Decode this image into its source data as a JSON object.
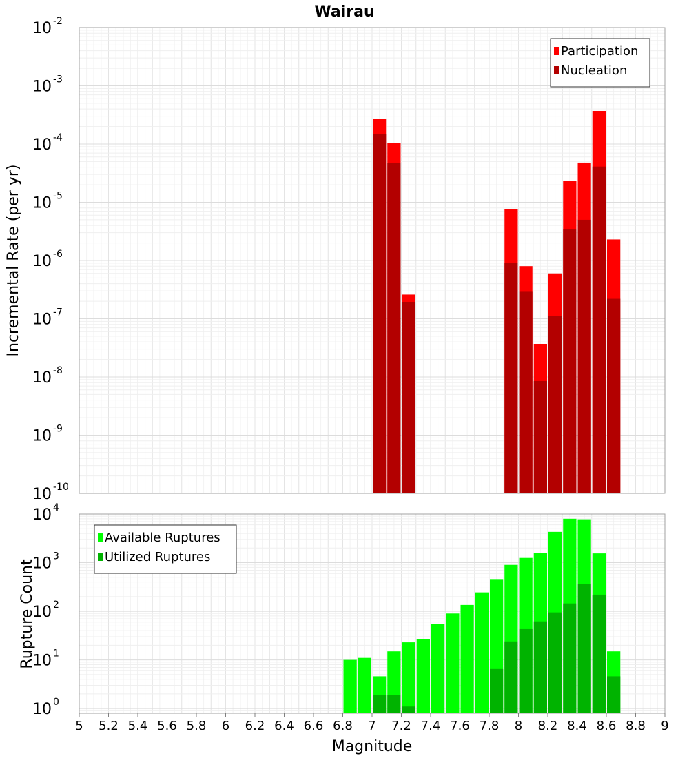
{
  "chart_data": [
    {
      "type": "bar",
      "title": "Wairau",
      "xlabel": "",
      "ylabel": "Incremental Rate (per yr)",
      "yscale": "log",
      "ylim": [
        1e-10,
        0.01
      ],
      "xlim": [
        5,
        9
      ],
      "bar_width": 0.1,
      "grid": true,
      "legend_position": "top-right",
      "yticks": [
        {
          "base": "10",
          "exp": "-2"
        },
        {
          "base": "10",
          "exp": "-3"
        },
        {
          "base": "10",
          "exp": "-4"
        },
        {
          "base": "10",
          "exp": "-5"
        },
        {
          "base": "10",
          "exp": "-6"
        },
        {
          "base": "10",
          "exp": "-7"
        },
        {
          "base": "10",
          "exp": "-8"
        },
        {
          "base": "10",
          "exp": "-9"
        },
        {
          "base": "10",
          "exp": "-10"
        }
      ],
      "series": [
        {
          "name": "Participation",
          "color": "#ff0000",
          "points": [
            {
              "x": 7.05,
              "y": 0.00027
            },
            {
              "x": 7.15,
              "y": 0.000105
            },
            {
              "x": 7.25,
              "y": 2.6e-07
            },
            {
              "x": 7.95,
              "y": 7.7e-06
            },
            {
              "x": 8.05,
              "y": 8e-07
            },
            {
              "x": 8.15,
              "y": 3.7e-08
            },
            {
              "x": 8.25,
              "y": 6e-07
            },
            {
              "x": 8.35,
              "y": 2.3e-05
            },
            {
              "x": 8.45,
              "y": 4.8e-05
            },
            {
              "x": 8.55,
              "y": 0.00037
            },
            {
              "x": 8.65,
              "y": 2.3e-06
            }
          ]
        },
        {
          "name": "Nucleation",
          "color": "#b30000",
          "points": [
            {
              "x": 7.05,
              "y": 0.00015
            },
            {
              "x": 7.15,
              "y": 4.7e-05
            },
            {
              "x": 7.25,
              "y": 1.95e-07
            },
            {
              "x": 7.95,
              "y": 9e-07
            },
            {
              "x": 8.05,
              "y": 2.9e-07
            },
            {
              "x": 8.15,
              "y": 8.5e-09
            },
            {
              "x": 8.25,
              "y": 1.1e-07
            },
            {
              "x": 8.35,
              "y": 3.4e-06
            },
            {
              "x": 8.45,
              "y": 5e-06
            },
            {
              "x": 8.55,
              "y": 4.1e-05
            },
            {
              "x": 8.65,
              "y": 2.2e-07
            }
          ]
        }
      ]
    },
    {
      "type": "bar",
      "title": "",
      "xlabel": "Magnitude",
      "ylabel": "Rupture Count",
      "yscale": "log",
      "ylim": [
        0.8,
        10000
      ],
      "xlim": [
        5,
        9
      ],
      "bar_width": 0.1,
      "grid": true,
      "legend_position": "top-left",
      "yticks": [
        {
          "base": "10",
          "exp": "4",
          "value": 10000
        },
        {
          "base": "10",
          "exp": "3",
          "value": 1000
        },
        {
          "base": "10",
          "exp": "2",
          "value": 100
        },
        {
          "base": "10",
          "exp": "1",
          "value": 10
        },
        {
          "base": "10",
          "exp": "0",
          "value": 1
        }
      ],
      "xticks": [
        "5",
        "5.2",
        "5.4",
        "5.6",
        "5.8",
        "6",
        "6.2",
        "6.4",
        "6.6",
        "6.8",
        "7",
        "7.2",
        "7.4",
        "7.6",
        "7.8",
        "8",
        "8.2",
        "8.4",
        "8.6",
        "8.8",
        "9"
      ],
      "series": [
        {
          "name": "Available Ruptures",
          "color": "#00ff00",
          "points": [
            {
              "x": 6.85,
              "y": 10
            },
            {
              "x": 6.95,
              "y": 11
            },
            {
              "x": 7.05,
              "y": 4.6
            },
            {
              "x": 7.15,
              "y": 15
            },
            {
              "x": 7.25,
              "y": 23
            },
            {
              "x": 7.35,
              "y": 27
            },
            {
              "x": 7.45,
              "y": 55
            },
            {
              "x": 7.55,
              "y": 90
            },
            {
              "x": 7.65,
              "y": 135
            },
            {
              "x": 7.75,
              "y": 245
            },
            {
              "x": 7.85,
              "y": 460
            },
            {
              "x": 7.95,
              "y": 900
            },
            {
              "x": 8.05,
              "y": 1250
            },
            {
              "x": 8.15,
              "y": 1600
            },
            {
              "x": 8.25,
              "y": 4300
            },
            {
              "x": 8.35,
              "y": 8000
            },
            {
              "x": 8.45,
              "y": 7800
            },
            {
              "x": 8.55,
              "y": 1550
            },
            {
              "x": 8.65,
              "y": 15
            }
          ]
        },
        {
          "name": "Utilized Ruptures",
          "color": "#00b300",
          "points": [
            {
              "x": 7.05,
              "y": 1.9
            },
            {
              "x": 7.15,
              "y": 1.9
            },
            {
              "x": 7.25,
              "y": 1.1
            },
            {
              "x": 7.85,
              "y": 6.5
            },
            {
              "x": 7.95,
              "y": 24
            },
            {
              "x": 8.05,
              "y": 43
            },
            {
              "x": 8.15,
              "y": 62
            },
            {
              "x": 8.25,
              "y": 95
            },
            {
              "x": 8.35,
              "y": 145
            },
            {
              "x": 8.45,
              "y": 360
            },
            {
              "x": 8.55,
              "y": 220
            },
            {
              "x": 8.65,
              "y": 4.6
            }
          ]
        }
      ]
    }
  ]
}
